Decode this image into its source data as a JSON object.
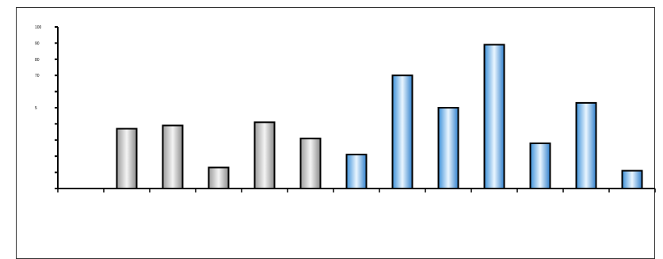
{
  "title_strip": "",
  "colors": {
    "gray_bar": [
      "#9a9a9a",
      "#f4f4f4",
      "#8a8a8a"
    ],
    "blue_bar": [
      "#3b8fd8",
      "#eaf6ff",
      "#2f7fcc"
    ],
    "axis": "#000000",
    "bar_edge": "#000000"
  },
  "chart_data": {
    "type": "bar",
    "title": "",
    "xlabel": "",
    "ylabel": "",
    "ylim": [
      0,
      100
    ],
    "grid": false,
    "yticks": [
      0,
      10,
      20,
      30,
      40,
      50,
      60,
      70,
      80,
      90,
      100
    ],
    "ytick_labels_visible": [
      "5",
      "70",
      "80",
      "90",
      "100"
    ],
    "categories": [
      "",
      "",
      "",
      "",
      "",
      "",
      "",
      "",
      "",
      "",
      "",
      "",
      ""
    ],
    "values": [
      null,
      37,
      39,
      13,
      41,
      31,
      21,
      70,
      50,
      89,
      28,
      53,
      11
    ],
    "bar_style": [
      "none",
      "gray",
      "gray",
      "gray",
      "gray",
      "gray",
      "blue",
      "blue",
      "blue",
      "blue",
      "blue",
      "blue",
      "blue"
    ]
  }
}
